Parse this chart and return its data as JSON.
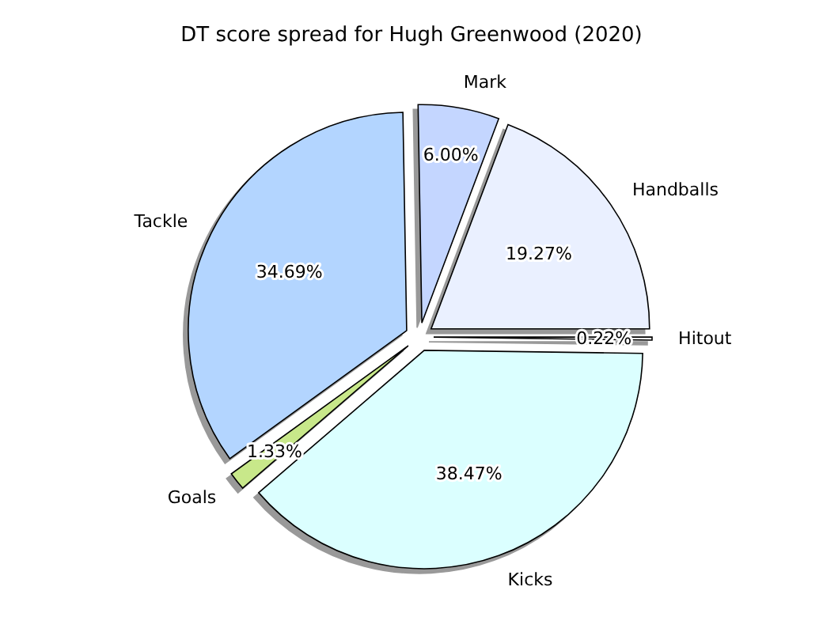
{
  "chart_data": {
    "type": "pie",
    "title": "DT score spread for Hugh Greenwood (2020)",
    "categories": [
      "Handballs",
      "Mark",
      "Tackle",
      "Goals",
      "Kicks",
      "Hitout"
    ],
    "values": [
      19.27,
      6.0,
      34.69,
      1.33,
      38.47,
      0.22
    ],
    "value_labels": [
      "19.27%",
      "6.00%",
      "34.69%",
      "1.33%",
      "38.47%",
      "0.22%"
    ],
    "colors": [
      "#eaf0ff",
      "#c4d6ff",
      "#b3d5ff",
      "#c8e88a",
      "#dbffff",
      "#ffffff"
    ],
    "legend": false
  }
}
